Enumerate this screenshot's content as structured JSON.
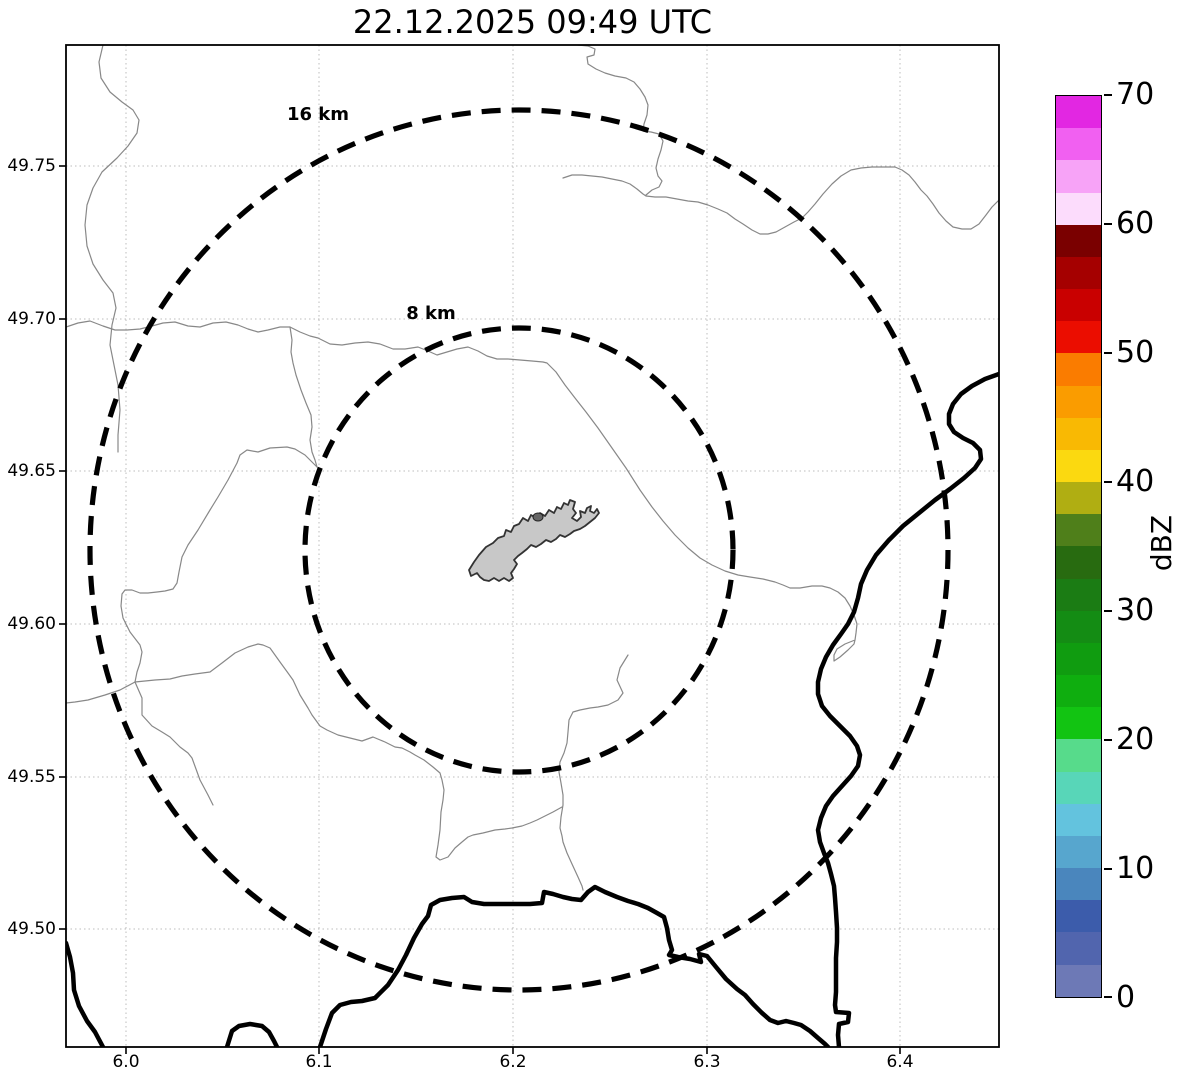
{
  "title": "22.12.2025 09:49 UTC",
  "map": {
    "x_ticks": [
      "6.0",
      "6.1",
      "6.2",
      "6.3",
      "6.4"
    ],
    "y_ticks": [
      "49.75",
      "49.70",
      "49.65",
      "49.60",
      "49.55",
      "49.50"
    ],
    "range_rings": [
      {
        "label": "16 km"
      },
      {
        "label": "8 km"
      }
    ],
    "features": {
      "airport_outline_fill": "#c8c8c8",
      "boundary_line_color": "#888888",
      "border_river_color": "#000000",
      "range_ring_color": "#000000"
    }
  },
  "colorbar": {
    "label": "dBZ",
    "tick_labels": [
      "70",
      "60",
      "50",
      "40",
      "30",
      "20",
      "10",
      "0"
    ],
    "min": 0,
    "max": 70,
    "band_step": 2.5,
    "band_colors_top_to_bottom": [
      "#e227e2",
      "#f160f1",
      "#f7a3f7",
      "#fcdcfc",
      "#7a0000",
      "#a50000",
      "#c90000",
      "#eb0d00",
      "#fa7c00",
      "#fa9c00",
      "#f9b903",
      "#fbd910",
      "#b0ae12",
      "#4f7f1a",
      "#286b10",
      "#1b7c14",
      "#148c14",
      "#109c10",
      "#0fae0f",
      "#12c412",
      "#57db8b",
      "#58d6b8",
      "#63c3de",
      "#57a6ce",
      "#4a86bd",
      "#3c5cab",
      "#5165ae",
      "#6d79b6"
    ]
  }
}
